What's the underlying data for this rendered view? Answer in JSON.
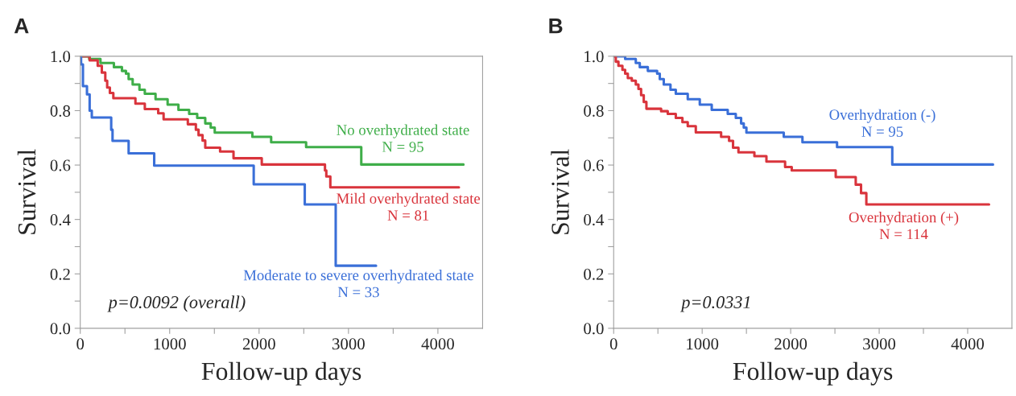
{
  "chart_data": [
    {
      "type": "step",
      "title": "A",
      "xlabel": "Follow-up days",
      "ylabel": "Survival",
      "xlim": [
        0,
        4500
      ],
      "xticks": [
        0,
        {
          "value": 500,
          "label": null
        },
        1000,
        {
          "value": 1500,
          "label": null
        },
        2000,
        {
          "value": 2500,
          "label": null
        },
        3000,
        {
          "value": 3500,
          "label": null
        },
        4000
      ],
      "ylim": [
        0,
        1
      ],
      "yticks": [
        {
          "value": 0,
          "label": "0.0"
        },
        {
          "value": 0.1,
          "label": null
        },
        0.2,
        {
          "value": 0.3,
          "label": null
        },
        0.4,
        {
          "value": 0.5,
          "label": null
        },
        0.6,
        {
          "value": 0.7,
          "label": null
        },
        0.8,
        {
          "value": 0.9,
          "label": null
        },
        {
          "value": 1,
          "label": "1.0"
        }
      ],
      "grid": false,
      "legend": false,
      "series": [
        {
          "name": "No overhydrated state",
          "color": "#3fae49",
          "x": [
            0,
            100,
            226,
            376,
            466,
            511,
            541,
            586,
            662,
            722,
            842,
            977,
            1098,
            1218,
            1308,
            1398,
            1459,
            1504,
            1925,
            2135,
            2526,
            3143,
            4286
          ],
          "values": [
            1.0,
            0.99,
            0.975,
            0.96,
            0.946,
            0.936,
            0.916,
            0.896,
            0.877,
            0.862,
            0.842,
            0.822,
            0.803,
            0.788,
            0.773,
            0.753,
            0.738,
            0.719,
            0.704,
            0.684,
            0.666,
            0.602,
            0.602
          ]
        },
        {
          "name": "Mild overhydrated state",
          "color": "#d9343c",
          "x": [
            0,
            105,
            195,
            241,
            280,
            301,
            331,
            370,
            617,
            722,
            872,
            932,
            1203,
            1293,
            1323,
            1368,
            1398,
            1564,
            1714,
            2030,
            2737,
            2752,
            2797,
            4235
          ],
          "values": [
            1.0,
            0.985,
            0.965,
            0.94,
            0.91,
            0.885,
            0.865,
            0.846,
            0.826,
            0.806,
            0.79,
            0.768,
            0.75,
            0.73,
            0.71,
            0.69,
            0.664,
            0.65,
            0.625,
            0.602,
            0.58,
            0.558,
            0.518,
            0.518
          ]
        },
        {
          "name": "Moderate to severe overhydrated state",
          "color": "#3a6fd8",
          "x": [
            0,
            9,
            30,
            75,
            105,
            129,
            346,
            361,
            541,
            827,
            1940,
            2511,
            2857,
            3308
          ],
          "values": [
            1.0,
            0.97,
            0.89,
            0.86,
            0.8,
            0.775,
            0.73,
            0.689,
            0.643,
            0.598,
            0.529,
            0.455,
            0.23,
            0.23
          ]
        }
      ],
      "annotations": [
        "N = 95",
        "N = 81",
        "N = 33",
        "p=0.0092 (overall)"
      ]
    },
    {
      "type": "step",
      "title": "B",
      "xlabel": "Follow-up days",
      "ylabel": "Survival",
      "xlim": [
        0,
        4500
      ],
      "xticks": [
        0,
        {
          "value": 500,
          "label": null
        },
        1000,
        {
          "value": 1500,
          "label": null
        },
        2000,
        {
          "value": 2500,
          "label": null
        },
        3000,
        {
          "value": 3500,
          "label": null
        },
        4000
      ],
      "ylim": [
        0,
        1
      ],
      "yticks": [
        {
          "value": 0,
          "label": "0.0"
        },
        {
          "value": 0.1,
          "label": null
        },
        0.2,
        {
          "value": 0.3,
          "label": null
        },
        0.4,
        {
          "value": 0.5,
          "label": null
        },
        0.6,
        {
          "value": 0.7,
          "label": null
        },
        0.8,
        {
          "value": 0.9,
          "label": null
        },
        {
          "value": 1,
          "label": "1.0"
        }
      ],
      "grid": false,
      "legend": false,
      "series": [
        {
          "name": "Overhydration (-)",
          "color": "#3a6fd8",
          "x": [
            0,
            130,
            250,
            295,
            386,
            491,
            521,
            566,
            642,
            702,
            837,
            973,
            1108,
            1289,
            1380,
            1440,
            1470,
            1500,
            1922,
            2133,
            2524,
            3148,
            4286
          ],
          "values": [
            1.0,
            0.99,
            0.975,
            0.96,
            0.946,
            0.936,
            0.916,
            0.896,
            0.877,
            0.862,
            0.842,
            0.822,
            0.803,
            0.788,
            0.773,
            0.753,
            0.738,
            0.719,
            0.704,
            0.684,
            0.666,
            0.602,
            0.602
          ]
        },
        {
          "name": "Overhydration (+)",
          "color": "#d9343c",
          "x": [
            0,
            24,
            54,
            99,
            130,
            160,
            205,
            250,
            280,
            310,
            340,
            370,
            536,
            611,
            702,
            777,
            837,
            928,
            1214,
            1304,
            1349,
            1410,
            1590,
            1726,
            1937,
            2012,
            2509,
            2735,
            2795,
            2855,
            4241
          ],
          "values": [
            1.0,
            0.98,
            0.965,
            0.95,
            0.936,
            0.92,
            0.91,
            0.896,
            0.88,
            0.857,
            0.832,
            0.807,
            0.798,
            0.788,
            0.773,
            0.758,
            0.743,
            0.72,
            0.704,
            0.689,
            0.664,
            0.647,
            0.633,
            0.613,
            0.593,
            0.58,
            0.556,
            0.528,
            0.497,
            0.455,
            0.455
          ]
        }
      ],
      "annotations": [
        "N = 95",
        "N = 114",
        "p=0.0331"
      ]
    }
  ]
}
